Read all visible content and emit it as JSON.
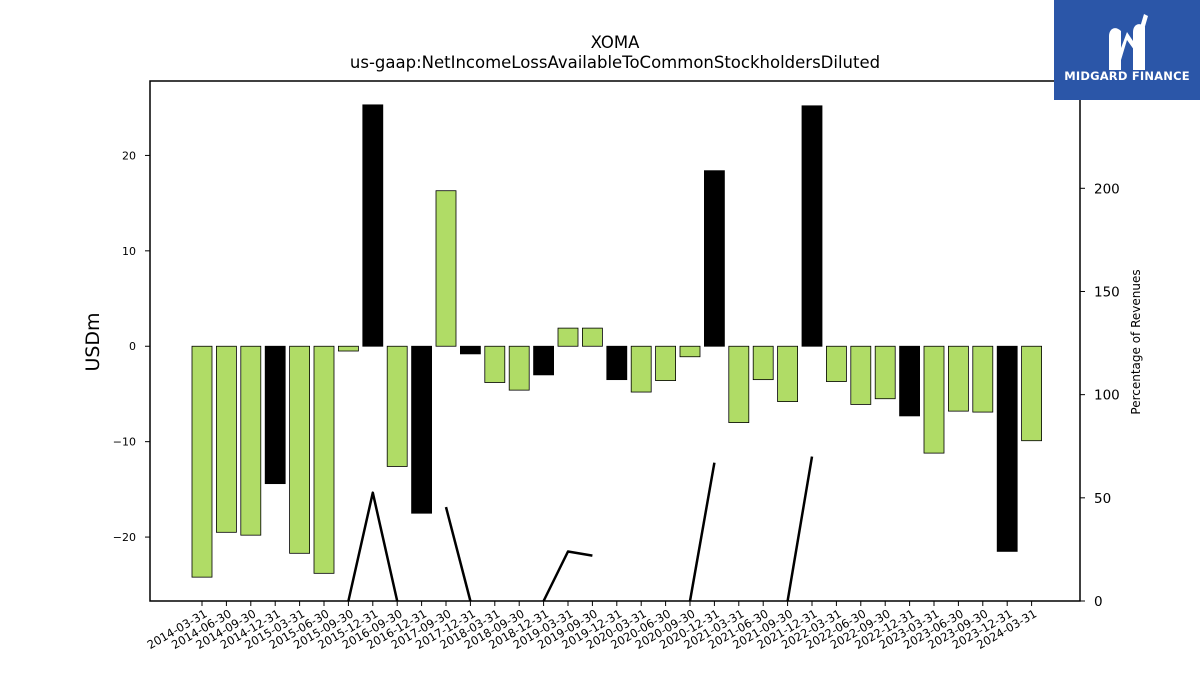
{
  "chart_data": {
    "type": "bar",
    "title": "XOMA",
    "subtitle": "us-gaap:NetIncomeLossAvailableToCommonStockholdersDiluted",
    "ylabel": "USDm",
    "y2label": "Percentage of Revenues",
    "ylim": [
      -26.7,
      27.8
    ],
    "y2lim": [
      0,
      252
    ],
    "yticks": [
      -20,
      -10,
      0,
      10,
      20
    ],
    "y2ticks": [
      0,
      50,
      100,
      150,
      200
    ],
    "grid": false,
    "categories": [
      "2014-03-31",
      "2014-06-30",
      "2014-09-30",
      "2014-12-31",
      "2015-03-31",
      "2015-06-30",
      "2015-09-30",
      "2015-12-31",
      "2016-09-30",
      "2016-12-31",
      "2017-09-30",
      "2017-12-31",
      "2018-03-31",
      "2018-09-30",
      "2018-12-31",
      "2019-03-31",
      "2019-09-30",
      "2019-12-31",
      "2020-03-31",
      "2020-06-30",
      "2020-09-30",
      "2020-12-31",
      "2021-03-31",
      "2021-06-30",
      "2021-09-30",
      "2021-12-31",
      "2022-03-31",
      "2022-06-30",
      "2022-09-30",
      "2022-12-31",
      "2023-03-31",
      "2023-06-30",
      "2023-09-30",
      "2023-12-31",
      "2024-03-31"
    ],
    "series": [
      {
        "type": "bar",
        "values": [
          -24.2,
          -19.5,
          -19.8,
          -14.4,
          -21.7,
          -23.8,
          -0.5,
          25.3,
          -12.6,
          -17.5,
          16.3,
          -0.8,
          -3.8,
          -4.6,
          -3.0,
          1.9,
          1.9,
          -3.5,
          -4.8,
          -3.6,
          -1.1,
          18.4,
          -8.0,
          -3.5,
          -5.8,
          25.2,
          -3.7,
          -6.1,
          -5.5,
          -7.3,
          -11.2,
          -6.8,
          -6.9,
          -21.5,
          -9.9
        ],
        "colors": [
          "#b0dc66",
          "#b0dc66",
          "#b0dc66",
          "#000000",
          "#b0dc66",
          "#b0dc66",
          "#b0dc66",
          "#000000",
          "#b0dc66",
          "#000000",
          "#b0dc66",
          "#000000",
          "#b0dc66",
          "#b0dc66",
          "#000000",
          "#b0dc66",
          "#b0dc66",
          "#000000",
          "#b0dc66",
          "#b0dc66",
          "#b0dc66",
          "#000000",
          "#b0dc66",
          "#b0dc66",
          "#b0dc66",
          "#000000",
          "#b0dc66",
          "#b0dc66",
          "#b0dc66",
          "#000000",
          "#b0dc66",
          "#b0dc66",
          "#b0dc66",
          "#000000",
          "#b0dc66"
        ]
      },
      {
        "type": "line",
        "axis": "y2",
        "values": [
          null,
          null,
          null,
          null,
          null,
          null,
          0,
          52.5,
          0,
          null,
          45.5,
          0,
          null,
          null,
          0,
          24.0,
          22.0,
          null,
          null,
          null,
          0,
          67.0,
          null,
          null,
          0,
          70.0,
          null,
          null,
          null,
          null,
          null,
          null,
          null,
          null,
          null
        ]
      }
    ]
  },
  "logo": {
    "text": "MIDGARD FINANCE"
  }
}
